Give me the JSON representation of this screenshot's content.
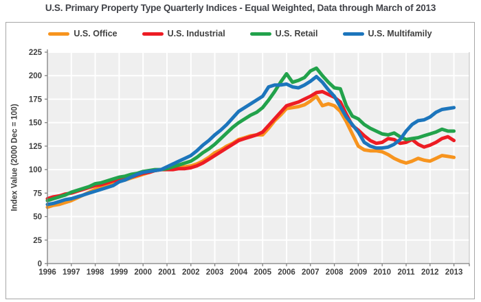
{
  "page": {
    "title": "U.S. Primary Property Type Quarterly Indices - Equal Weighted, Data through March of 2013"
  },
  "chart_data": {
    "type": "line",
    "title": "U.S. Primary Property Type Quarterly Indices - Equal Weighted, Data through March of 2013",
    "xlabel": "",
    "ylabel": "Index Value (2000 Dec = 100)",
    "ylim": [
      0,
      225
    ],
    "ytick_step": 25,
    "grid": true,
    "legend_position": "top",
    "x_labels": [
      "1996",
      "1997",
      "1998",
      "1999",
      "2000",
      "2001",
      "2002",
      "2003",
      "2004",
      "2005",
      "2006",
      "2007",
      "2008",
      "2009",
      "2010",
      "2011",
      "2012",
      "2013"
    ],
    "points_per_year": 4,
    "plot_bg_color": "#efefef",
    "grid_color": "#ffffff",
    "axis_color": "#7f7f7f",
    "text_color": "#404040",
    "series": [
      {
        "name": "U.S. Office",
        "color": "#f7941e",
        "values": [
          60,
          62,
          63,
          65,
          67,
          70,
          73,
          76,
          79,
          81,
          83,
          85,
          88,
          89,
          91,
          93,
          95,
          97,
          99,
          100,
          101,
          102,
          103,
          103,
          104,
          106,
          109,
          113,
          118,
          121,
          125,
          128,
          132,
          134,
          136,
          137,
          137,
          144,
          152,
          158,
          165,
          166,
          167,
          169,
          173,
          178,
          168,
          170,
          168,
          162,
          151,
          138,
          125,
          121,
          120,
          120,
          119,
          116,
          112,
          109,
          107,
          109,
          112,
          110,
          109,
          112,
          115,
          114,
          113
        ]
      },
      {
        "name": "U.S. Industrial",
        "color": "#ed1c24",
        "values": [
          69,
          71,
          72,
          74,
          75,
          77,
          79,
          81,
          83,
          84,
          86,
          88,
          89,
          91,
          92,
          94,
          96,
          97,
          99,
          100,
          100,
          100,
          101,
          101,
          102,
          104,
          107,
          111,
          115,
          119,
          123,
          127,
          131,
          133,
          135,
          137,
          140,
          147,
          154,
          161,
          168,
          170,
          172,
          175,
          178,
          182,
          183,
          180,
          177,
          172,
          159,
          147,
          142,
          136,
          131,
          128,
          129,
          133,
          132,
          128,
          129,
          132,
          127,
          124,
          126,
          129,
          133,
          135,
          131
        ]
      },
      {
        "name": "U.S. Retail",
        "color": "#22a24b",
        "values": [
          67,
          69,
          71,
          73,
          76,
          78,
          80,
          82,
          85,
          86,
          88,
          90,
          92,
          93,
          95,
          96,
          98,
          99,
          100,
          100,
          101,
          103,
          105,
          107,
          109,
          113,
          118,
          122,
          127,
          133,
          139,
          145,
          150,
          154,
          158,
          161,
          166,
          174,
          183,
          193,
          202,
          193,
          195,
          198,
          205,
          208,
          200,
          193,
          187,
          186,
          168,
          157,
          154,
          148,
          144,
          141,
          138,
          137,
          139,
          135,
          132,
          133,
          134,
          136,
          138,
          140,
          143,
          141,
          141
        ]
      },
      {
        "name": "U.S. Multifamily",
        "color": "#1c75bc",
        "values": [
          63,
          64,
          66,
          68,
          69,
          71,
          73,
          75,
          77,
          79,
          81,
          83,
          87,
          89,
          92,
          95,
          97,
          98,
          99,
          100,
          103,
          106,
          109,
          112,
          115,
          120,
          126,
          131,
          137,
          142,
          148,
          155,
          162,
          166,
          170,
          174,
          178,
          188,
          190,
          190,
          191,
          188,
          187,
          190,
          194,
          199,
          193,
          185,
          178,
          167,
          156,
          148,
          140,
          129,
          125,
          123,
          123,
          124,
          127,
          132,
          141,
          148,
          152,
          153,
          156,
          161,
          164,
          165,
          166
        ]
      }
    ]
  }
}
